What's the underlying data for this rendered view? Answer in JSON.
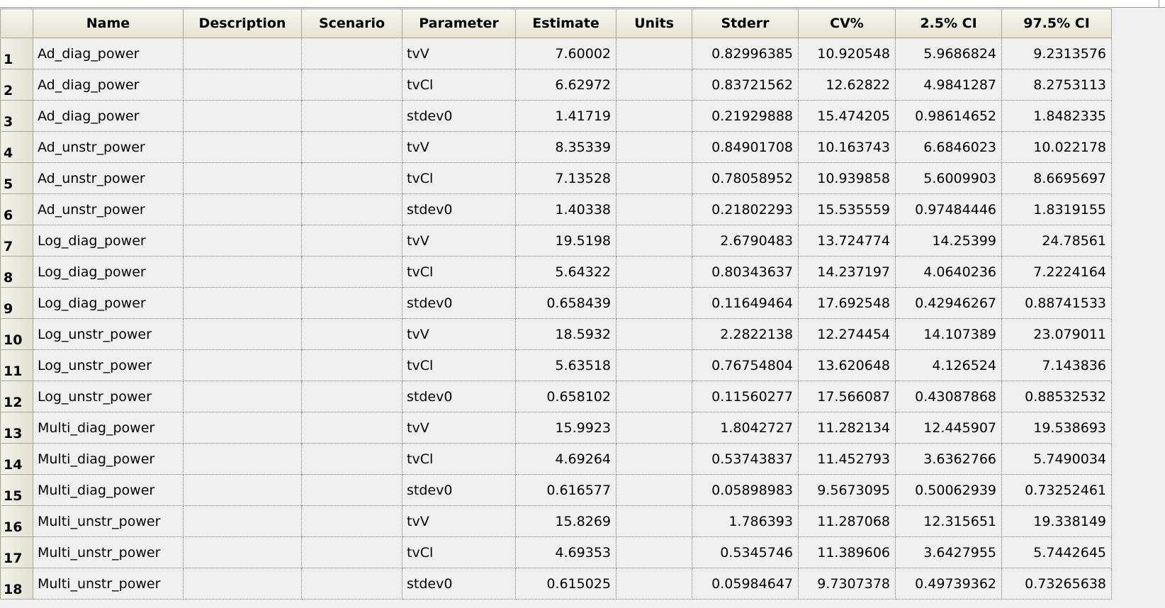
{
  "columns": [
    "Name",
    "Description",
    "Scenario",
    "Parameter",
    "Estimate",
    "Units",
    "Stderr",
    "CV%",
    "2.5% CI",
    "97.5% CI"
  ],
  "rows": [
    {
      "num": "1",
      "name": "Ad_diag_power",
      "description": "",
      "scenario": "",
      "parameter": "tvV",
      "estimate": "7.60002",
      "units": "",
      "stderr": "0.82996385",
      "cv": "10.920548",
      "ci_low": "5.9686824",
      "ci_high": "9.2313576"
    },
    {
      "num": "2",
      "name": "Ad_diag_power",
      "description": "",
      "scenario": "",
      "parameter": "tvCl",
      "estimate": "6.62972",
      "units": "",
      "stderr": "0.83721562",
      "cv": "12.62822",
      "ci_low": "4.9841287",
      "ci_high": "8.2753113"
    },
    {
      "num": "3",
      "name": "Ad_diag_power",
      "description": "",
      "scenario": "",
      "parameter": "stdev0",
      "estimate": "1.41719",
      "units": "",
      "stderr": "0.21929888",
      "cv": "15.474205",
      "ci_low": "0.98614652",
      "ci_high": "1.8482335"
    },
    {
      "num": "4",
      "name": "Ad_unstr_power",
      "description": "",
      "scenario": "",
      "parameter": "tvV",
      "estimate": "8.35339",
      "units": "",
      "stderr": "0.84901708",
      "cv": "10.163743",
      "ci_low": "6.6846023",
      "ci_high": "10.022178"
    },
    {
      "num": "5",
      "name": "Ad_unstr_power",
      "description": "",
      "scenario": "",
      "parameter": "tvCl",
      "estimate": "7.13528",
      "units": "",
      "stderr": "0.78058952",
      "cv": "10.939858",
      "ci_low": "5.6009903",
      "ci_high": "8.6695697"
    },
    {
      "num": "6",
      "name": "Ad_unstr_power",
      "description": "",
      "scenario": "",
      "parameter": "stdev0",
      "estimate": "1.40338",
      "units": "",
      "stderr": "0.21802293",
      "cv": "15.535559",
      "ci_low": "0.97484446",
      "ci_high": "1.8319155"
    },
    {
      "num": "7",
      "name": "Log_diag_power",
      "description": "",
      "scenario": "",
      "parameter": "tvV",
      "estimate": "19.5198",
      "units": "",
      "stderr": "2.6790483",
      "cv": "13.724774",
      "ci_low": "14.25399",
      "ci_high": "24.78561"
    },
    {
      "num": "8",
      "name": "Log_diag_power",
      "description": "",
      "scenario": "",
      "parameter": "tvCl",
      "estimate": "5.64322",
      "units": "",
      "stderr": "0.80343637",
      "cv": "14.237197",
      "ci_low": "4.0640236",
      "ci_high": "7.2224164"
    },
    {
      "num": "9",
      "name": "Log_diag_power",
      "description": "",
      "scenario": "",
      "parameter": "stdev0",
      "estimate": "0.658439",
      "units": "",
      "stderr": "0.11649464",
      "cv": "17.692548",
      "ci_low": "0.42946267",
      "ci_high": "0.88741533"
    },
    {
      "num": "10",
      "name": "Log_unstr_power",
      "description": "",
      "scenario": "",
      "parameter": "tvV",
      "estimate": "18.5932",
      "units": "",
      "stderr": "2.2822138",
      "cv": "12.274454",
      "ci_low": "14.107389",
      "ci_high": "23.079011"
    },
    {
      "num": "11",
      "name": "Log_unstr_power",
      "description": "",
      "scenario": "",
      "parameter": "tvCl",
      "estimate": "5.63518",
      "units": "",
      "stderr": "0.76754804",
      "cv": "13.620648",
      "ci_low": "4.126524",
      "ci_high": "7.143836"
    },
    {
      "num": "12",
      "name": "Log_unstr_power",
      "description": "",
      "scenario": "",
      "parameter": "stdev0",
      "estimate": "0.658102",
      "units": "",
      "stderr": "0.11560277",
      "cv": "17.566087",
      "ci_low": "0.43087868",
      "ci_high": "0.88532532"
    },
    {
      "num": "13",
      "name": "Multi_diag_power",
      "description": "",
      "scenario": "",
      "parameter": "tvV",
      "estimate": "15.9923",
      "units": "",
      "stderr": "1.8042727",
      "cv": "11.282134",
      "ci_low": "12.445907",
      "ci_high": "19.538693"
    },
    {
      "num": "14",
      "name": "Multi_diag_power",
      "description": "",
      "scenario": "",
      "parameter": "tvCl",
      "estimate": "4.69264",
      "units": "",
      "stderr": "0.53743837",
      "cv": "11.452793",
      "ci_low": "3.6362766",
      "ci_high": "5.7490034"
    },
    {
      "num": "15",
      "name": "Multi_diag_power",
      "description": "",
      "scenario": "",
      "parameter": "stdev0",
      "estimate": "0.616577",
      "units": "",
      "stderr": "0.05898983",
      "cv": "9.5673095",
      "ci_low": "0.50062939",
      "ci_high": "0.73252461"
    },
    {
      "num": "16",
      "name": "Multi_unstr_power",
      "description": "",
      "scenario": "",
      "parameter": "tvV",
      "estimate": "15.8269",
      "units": "",
      "stderr": "1.786393",
      "cv": "11.287068",
      "ci_low": "12.315651",
      "ci_high": "19.338149"
    },
    {
      "num": "17",
      "name": "Multi_unstr_power",
      "description": "",
      "scenario": "",
      "parameter": "tvCl",
      "estimate": "4.69353",
      "units": "",
      "stderr": "0.5345746",
      "cv": "11.389606",
      "ci_low": "3.6427955",
      "ci_high": "5.7442645"
    },
    {
      "num": "18",
      "name": "Multi_unstr_power",
      "description": "",
      "scenario": "",
      "parameter": "stdev0",
      "estimate": "0.615025",
      "units": "",
      "stderr": "0.05984647",
      "cv": "9.7307378",
      "ci_low": "0.49739362",
      "ci_high": "0.73265638"
    }
  ]
}
